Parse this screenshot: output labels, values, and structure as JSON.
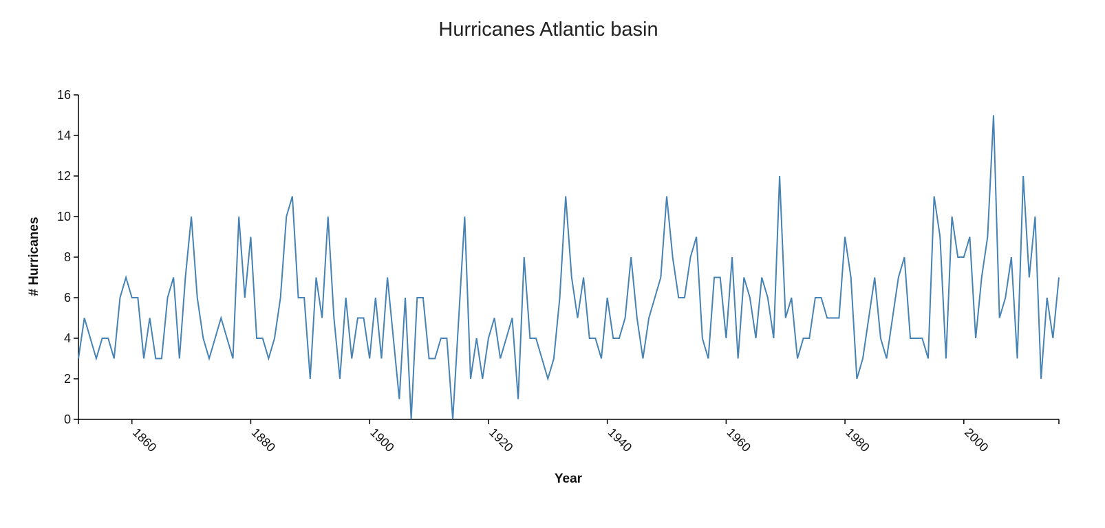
{
  "chart_data": {
    "type": "line",
    "title": "Hurricanes Atlantic basin",
    "xlabel": "Year",
    "ylabel": "# Hurricanes",
    "xlim": [
      1851,
      2016
    ],
    "ylim": [
      0,
      16
    ],
    "x_ticks": [
      1860,
      1880,
      1900,
      1920,
      1940,
      1960,
      1980,
      2000
    ],
    "y_ticks": [
      0,
      2,
      4,
      6,
      8,
      10,
      12,
      14,
      16
    ],
    "grid": false,
    "line_color": "#4682b4",
    "x": [
      1851,
      1852,
      1853,
      1854,
      1855,
      1856,
      1857,
      1858,
      1859,
      1860,
      1861,
      1862,
      1863,
      1864,
      1865,
      1866,
      1867,
      1868,
      1869,
      1870,
      1871,
      1872,
      1873,
      1874,
      1875,
      1876,
      1877,
      1878,
      1879,
      1880,
      1881,
      1882,
      1883,
      1884,
      1885,
      1886,
      1887,
      1888,
      1889,
      1890,
      1891,
      1892,
      1893,
      1894,
      1895,
      1896,
      1897,
      1898,
      1899,
      1900,
      1901,
      1902,
      1903,
      1904,
      1905,
      1906,
      1907,
      1908,
      1909,
      1910,
      1911,
      1912,
      1913,
      1914,
      1915,
      1916,
      1917,
      1918,
      1919,
      1920,
      1921,
      1922,
      1923,
      1924,
      1925,
      1926,
      1927,
      1928,
      1929,
      1930,
      1931,
      1932,
      1933,
      1934,
      1935,
      1936,
      1937,
      1938,
      1939,
      1940,
      1941,
      1942,
      1943,
      1944,
      1945,
      1946,
      1947,
      1948,
      1949,
      1950,
      1951,
      1952,
      1953,
      1954,
      1955,
      1956,
      1957,
      1958,
      1959,
      1960,
      1961,
      1962,
      1963,
      1964,
      1965,
      1966,
      1967,
      1968,
      1969,
      1970,
      1971,
      1972,
      1973,
      1974,
      1975,
      1976,
      1977,
      1978,
      1979,
      1980,
      1981,
      1982,
      1983,
      1984,
      1985,
      1986,
      1987,
      1988,
      1989,
      1990,
      1991,
      1992,
      1993,
      1994,
      1995,
      1996,
      1997,
      1998,
      1999,
      2000,
      2001,
      2002,
      2003,
      2004,
      2005,
      2006,
      2007,
      2008,
      2009,
      2010,
      2011,
      2012,
      2013,
      2014,
      2015,
      2016
    ],
    "series": [
      {
        "values": [
          3,
          5,
          4,
          3,
          4,
          4,
          3,
          6,
          7,
          6,
          6,
          3,
          5,
          3,
          3,
          6,
          7,
          3,
          7,
          10,
          6,
          4,
          3,
          4,
          5,
          4,
          3,
          10,
          6,
          9,
          4,
          4,
          3,
          4,
          6,
          10,
          11,
          6,
          6,
          2,
          7,
          5,
          10,
          5,
          2,
          6,
          3,
          5,
          5,
          3,
          6,
          3,
          7,
          4,
          1,
          6,
          0,
          6,
          6,
          3,
          3,
          4,
          4,
          0,
          5,
          10,
          2,
          4,
          2,
          4,
          5,
          3,
          4,
          5,
          1,
          8,
          4,
          4,
          3,
          2,
          3,
          6,
          11,
          7,
          5,
          7,
          4,
          4,
          3,
          6,
          4,
          4,
          5,
          8,
          5,
          3,
          5,
          6,
          7,
          11,
          8,
          6,
          6,
          8,
          9,
          4,
          3,
          7,
          7,
          4,
          8,
          3,
          7,
          6,
          4,
          7,
          6,
          4,
          12,
          5,
          6,
          3,
          4,
          4,
          6,
          6,
          5,
          5,
          5,
          9,
          7,
          2,
          3,
          5,
          7,
          4,
          3,
          5,
          7,
          8,
          4,
          4,
          4,
          3,
          11,
          9,
          3,
          10,
          8,
          8,
          9,
          4,
          7,
          9,
          15,
          5,
          6,
          8,
          3,
          12,
          7,
          10,
          2,
          6,
          4,
          7
        ]
      }
    ]
  }
}
